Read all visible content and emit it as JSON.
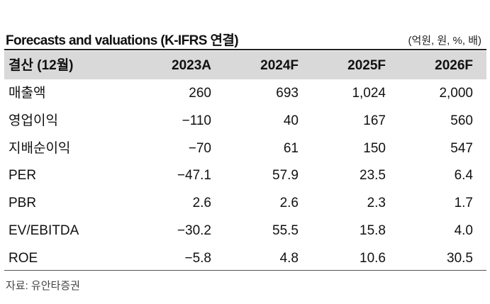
{
  "header": {
    "title": "Forecasts and valuations (K-IFRS 연결)",
    "unit": "(억원, 원, %, 배)"
  },
  "table": {
    "columns": [
      "결산 (12월)",
      "2023A",
      "2024F",
      "2025F",
      "2026F"
    ],
    "rows": [
      [
        "매출액",
        "260",
        "693",
        "1,024",
        "2,000"
      ],
      [
        "영업이익",
        "−110",
        "40",
        "167",
        "560"
      ],
      [
        "지배순이익",
        "−70",
        "61",
        "150",
        "547"
      ],
      [
        "PER",
        "−47.1",
        "57.9",
        "23.5",
        "6.4"
      ],
      [
        "PBR",
        "2.6",
        "2.6",
        "2.3",
        "1.7"
      ],
      [
        "EV/EBITDA",
        "−30.2",
        "55.5",
        "15.8",
        "4.0"
      ],
      [
        "ROE",
        "−5.8",
        "4.8",
        "10.6",
        "30.5"
      ]
    ]
  },
  "source": "자료: 유안타증권"
}
